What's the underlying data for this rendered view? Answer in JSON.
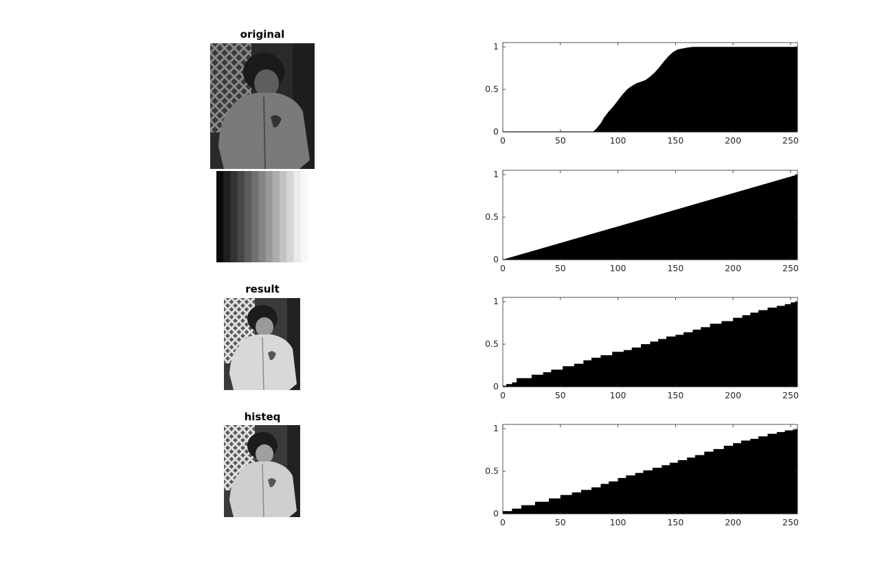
{
  "titles": {
    "original": "original",
    "result": "result",
    "histeq": "histeq"
  },
  "colors": {
    "fill": "#000000",
    "axis": "#262626",
    "background": "#ffffff"
  },
  "gradient_levels": [
    0.04,
    0.12,
    0.2,
    0.28,
    0.36,
    0.44,
    0.52,
    0.6,
    0.68,
    0.76,
    0.84,
    0.92,
    0.97
  ],
  "chart_data": [
    {
      "type": "area",
      "description_ref": "cumulative histogram of original",
      "xlim": [
        0,
        256
      ],
      "ylim": [
        0,
        1.05
      ],
      "xticks": [
        0,
        50,
        100,
        150,
        200,
        250
      ],
      "yticks": [
        0,
        0.5,
        1
      ],
      "xticklabels": [
        "0",
        "50",
        "100",
        "150",
        "200",
        "250"
      ],
      "yticklabels": [
        "0",
        "0.5",
        "1"
      ],
      "step": false,
      "points": [
        [
          0,
          0
        ],
        [
          78,
          0
        ],
        [
          80,
          0.02
        ],
        [
          82,
          0.05
        ],
        [
          85,
          0.1
        ],
        [
          88,
          0.17
        ],
        [
          92,
          0.24
        ],
        [
          96,
          0.3
        ],
        [
          100,
          0.37
        ],
        [
          104,
          0.44
        ],
        [
          108,
          0.5
        ],
        [
          112,
          0.54
        ],
        [
          116,
          0.57
        ],
        [
          120,
          0.59
        ],
        [
          124,
          0.61
        ],
        [
          128,
          0.65
        ],
        [
          132,
          0.7
        ],
        [
          136,
          0.76
        ],
        [
          140,
          0.83
        ],
        [
          144,
          0.89
        ],
        [
          148,
          0.94
        ],
        [
          152,
          0.97
        ],
        [
          156,
          0.98
        ],
        [
          160,
          0.99
        ],
        [
          165,
          1.0
        ],
        [
          256,
          1.0
        ]
      ]
    },
    {
      "type": "area",
      "xlim": [
        0,
        256
      ],
      "ylim": [
        0,
        1.05
      ],
      "xticks": [
        0,
        50,
        100,
        150,
        200,
        250
      ],
      "yticks": [
        0,
        0.5,
        1
      ],
      "xticklabels": [
        "0",
        "50",
        "100",
        "150",
        "200",
        "250"
      ],
      "yticklabels": [
        "0",
        "0.5",
        "1"
      ],
      "step": false,
      "points": [
        [
          0,
          0
        ],
        [
          256,
          1.0
        ]
      ]
    },
    {
      "type": "area",
      "xlim": [
        0,
        256
      ],
      "ylim": [
        0,
        1.05
      ],
      "xticks": [
        0,
        50,
        100,
        150,
        200,
        250
      ],
      "yticks": [
        0,
        0.5,
        1
      ],
      "xticklabels": [
        "0",
        "50",
        "100",
        "150",
        "200",
        "250"
      ],
      "yticklabels": [
        "0",
        "0.5",
        "1"
      ],
      "step": true,
      "points": [
        [
          0,
          0.01
        ],
        [
          3,
          0.03
        ],
        [
          8,
          0.05
        ],
        [
          12,
          0.1
        ],
        [
          25,
          0.14
        ],
        [
          35,
          0.17
        ],
        [
          42,
          0.2
        ],
        [
          52,
          0.24
        ],
        [
          62,
          0.27
        ],
        [
          70,
          0.31
        ],
        [
          77,
          0.34
        ],
        [
          85,
          0.37
        ],
        [
          95,
          0.41
        ],
        [
          105,
          0.43
        ],
        [
          112,
          0.46
        ],
        [
          120,
          0.5
        ],
        [
          128,
          0.53
        ],
        [
          135,
          0.56
        ],
        [
          142,
          0.59
        ],
        [
          150,
          0.61
        ],
        [
          157,
          0.64
        ],
        [
          165,
          0.67
        ],
        [
          172,
          0.7
        ],
        [
          180,
          0.74
        ],
        [
          190,
          0.77
        ],
        [
          200,
          0.81
        ],
        [
          208,
          0.84
        ],
        [
          215,
          0.87
        ],
        [
          222,
          0.9
        ],
        [
          230,
          0.93
        ],
        [
          238,
          0.95
        ],
        [
          245,
          0.97
        ],
        [
          250,
          0.99
        ],
        [
          254,
          1.0
        ],
        [
          256,
          1.0
        ]
      ]
    },
    {
      "type": "area",
      "xlim": [
        0,
        256
      ],
      "ylim": [
        0,
        1.05
      ],
      "xticks": [
        0,
        50,
        100,
        150,
        200,
        250
      ],
      "yticks": [
        0,
        0.5,
        1
      ],
      "xticklabels": [
        "0",
        "50",
        "100",
        "150",
        "200",
        "250"
      ],
      "yticklabels": [
        "0",
        "0.5",
        "1"
      ],
      "step": true,
      "points": [
        [
          0,
          0.03
        ],
        [
          8,
          0.06
        ],
        [
          16,
          0.1
        ],
        [
          28,
          0.14
        ],
        [
          40,
          0.18
        ],
        [
          50,
          0.22
        ],
        [
          60,
          0.25
        ],
        [
          68,
          0.28
        ],
        [
          77,
          0.31
        ],
        [
          85,
          0.35
        ],
        [
          92,
          0.38
        ],
        [
          100,
          0.42
        ],
        [
          107,
          0.45
        ],
        [
          115,
          0.48
        ],
        [
          122,
          0.51
        ],
        [
          130,
          0.54
        ],
        [
          138,
          0.57
        ],
        [
          145,
          0.6
        ],
        [
          152,
          0.63
        ],
        [
          160,
          0.66
        ],
        [
          167,
          0.69
        ],
        [
          175,
          0.73
        ],
        [
          183,
          0.76
        ],
        [
          192,
          0.8
        ],
        [
          200,
          0.83
        ],
        [
          207,
          0.86
        ],
        [
          215,
          0.88
        ],
        [
          222,
          0.91
        ],
        [
          230,
          0.94
        ],
        [
          238,
          0.96
        ],
        [
          245,
          0.98
        ],
        [
          252,
          0.99
        ],
        [
          256,
          1.0
        ]
      ]
    }
  ]
}
